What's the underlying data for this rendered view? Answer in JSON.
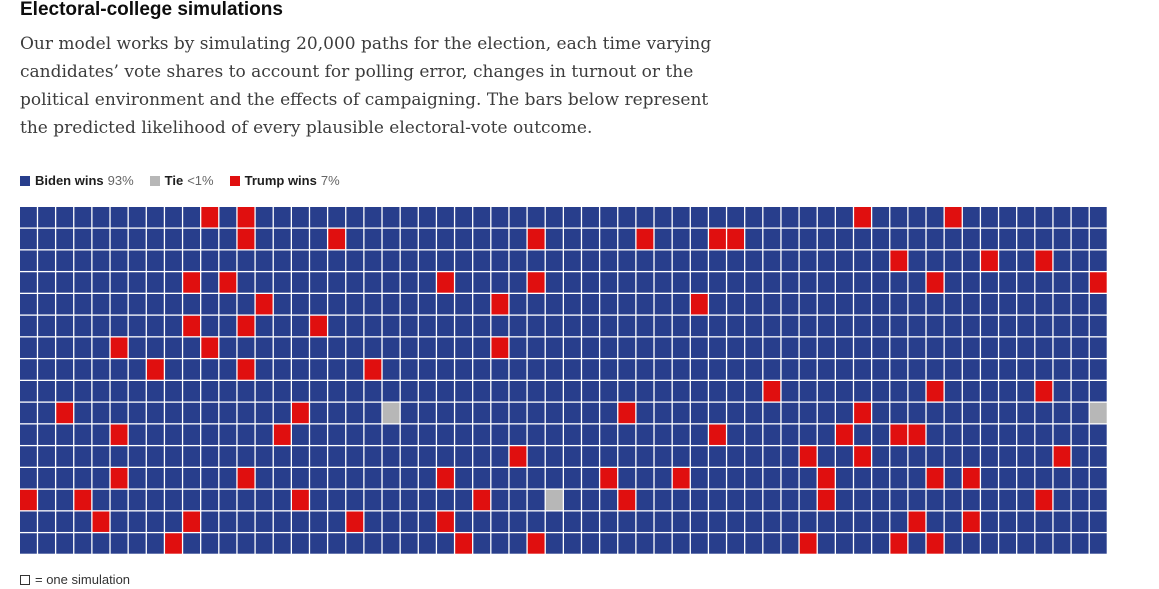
{
  "title": "Electoral-college simulations",
  "description": "Our model works by simulating 20,000 paths for the election, each time varying candidates’ vote shares to account for polling error, changes in turnout or the political environment and the effects of campaigning. The bars below represent the predicted likelihood of every plausible electoral-vote outcome.",
  "legend": [
    {
      "label": "Biden wins",
      "pct": "93%",
      "color": "#283e8c"
    },
    {
      "label": "Tie",
      "pct": "<1%",
      "color": "#b7b7b7"
    },
    {
      "label": "Trump wins",
      "pct": "7%",
      "color": "#e00f0f"
    }
  ],
  "footnote": "= one simulation",
  "chart_data": {
    "type": "heatmap",
    "rows": 16,
    "cols": 60,
    "default_outcome": "Biden wins",
    "trump_cells": [
      [
        0,
        10
      ],
      [
        0,
        12
      ],
      [
        0,
        46
      ],
      [
        0,
        51
      ],
      [
        1,
        12
      ],
      [
        1,
        17
      ],
      [
        1,
        28
      ],
      [
        1,
        34
      ],
      [
        1,
        38
      ],
      [
        1,
        39
      ],
      [
        2,
        48
      ],
      [
        2,
        53
      ],
      [
        2,
        56
      ],
      [
        3,
        9
      ],
      [
        3,
        11
      ],
      [
        3,
        23
      ],
      [
        3,
        28
      ],
      [
        3,
        50
      ],
      [
        3,
        59
      ],
      [
        4,
        13
      ],
      [
        4,
        26
      ],
      [
        4,
        37
      ],
      [
        5,
        9
      ],
      [
        5,
        12
      ],
      [
        5,
        16
      ],
      [
        6,
        5
      ],
      [
        6,
        10
      ],
      [
        6,
        26
      ],
      [
        7,
        7
      ],
      [
        7,
        12
      ],
      [
        7,
        19
      ],
      [
        8,
        41
      ],
      [
        8,
        50
      ],
      [
        8,
        56
      ],
      [
        9,
        2
      ],
      [
        9,
        15
      ],
      [
        9,
        33
      ],
      [
        9,
        46
      ],
      [
        10,
        5
      ],
      [
        10,
        14
      ],
      [
        10,
        38
      ],
      [
        10,
        45
      ],
      [
        10,
        48
      ],
      [
        10,
        49
      ],
      [
        11,
        27
      ],
      [
        11,
        43
      ],
      [
        11,
        46
      ],
      [
        11,
        57
      ],
      [
        12,
        5
      ],
      [
        12,
        12
      ],
      [
        12,
        23
      ],
      [
        12,
        32
      ],
      [
        12,
        36
      ],
      [
        12,
        44
      ],
      [
        12,
        50
      ],
      [
        12,
        52
      ],
      [
        13,
        0
      ],
      [
        13,
        3
      ],
      [
        13,
        15
      ],
      [
        13,
        25
      ],
      [
        13,
        33
      ],
      [
        13,
        44
      ],
      [
        13,
        56
      ],
      [
        14,
        4
      ],
      [
        14,
        9
      ],
      [
        14,
        18
      ],
      [
        14,
        23
      ],
      [
        14,
        49
      ],
      [
        14,
        52
      ],
      [
        15,
        8
      ],
      [
        15,
        24
      ],
      [
        15,
        28
      ],
      [
        15,
        43
      ],
      [
        15,
        48
      ],
      [
        15,
        50
      ]
    ],
    "tie_cells": [
      [
        9,
        20
      ],
      [
        9,
        59
      ],
      [
        13,
        29
      ]
    ]
  }
}
